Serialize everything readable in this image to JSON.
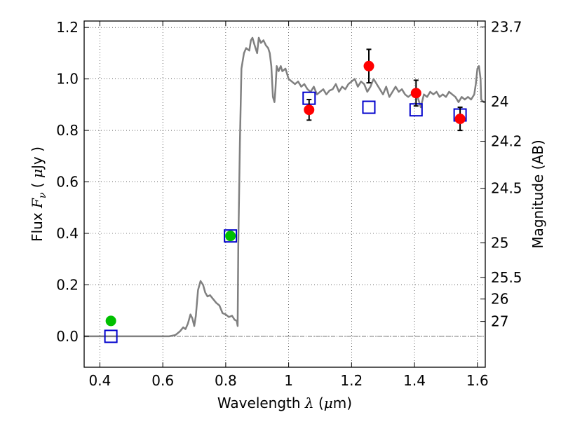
{
  "chart_data": {
    "type": "scatter",
    "title": "",
    "xlabel": "Wavelength  λ (μm)",
    "ylabel": "Flux  F_ν  ( μJy )",
    "ylabel_parts": {
      "pre": "Flux  ",
      "var": "F",
      "sub": "ν",
      "mid": "  ( ",
      "mu": "μ",
      "post": "Jy )"
    },
    "xlabel_parts": {
      "pre": "Wavelength  ",
      "lam": "λ",
      "mid": " (",
      "mu": "μ",
      "post": "m)"
    },
    "y2label": "Magnitude (AB)",
    "xlim": [
      0.35,
      1.625
    ],
    "ylim": [
      -0.12,
      1.225
    ],
    "grid": true,
    "x_ticks": [
      {
        "value": 0.4,
        "label": "0.4"
      },
      {
        "value": 0.6,
        "label": "0.6"
      },
      {
        "value": 0.8,
        "label": "0.8"
      },
      {
        "value": 1.0,
        "label": "1"
      },
      {
        "value": 1.2,
        "label": "1.2"
      },
      {
        "value": 1.4,
        "label": "1.4"
      },
      {
        "value": 1.6,
        "label": "1.6"
      }
    ],
    "y_ticks": [
      {
        "value": 0.0,
        "label": "0.0"
      },
      {
        "value": 0.2,
        "label": "0.2"
      },
      {
        "value": 0.4,
        "label": "0.4"
      },
      {
        "value": 0.6,
        "label": "0.6"
      },
      {
        "value": 0.8,
        "label": "0.8"
      },
      {
        "value": 1.0,
        "label": "1.0"
      },
      {
        "value": 1.2,
        "label": "1.2"
      }
    ],
    "y2_ticks": [
      {
        "flux": 1.202,
        "label": "23.7"
      },
      {
        "flux": 0.912,
        "label": "24"
      },
      {
        "flux": 0.758,
        "label": "24.2"
      },
      {
        "flux": 0.575,
        "label": "24.5"
      },
      {
        "flux": 0.363,
        "label": "25"
      },
      {
        "flux": 0.229,
        "label": "25.5"
      },
      {
        "flux": 0.145,
        "label": "26"
      },
      {
        "flux": 0.058,
        "label": "27"
      }
    ],
    "series": [
      {
        "kind": "line",
        "color": "#808080",
        "points": [
          [
            0.35,
            0.0
          ],
          [
            0.62,
            0.0
          ],
          [
            0.64,
            0.005
          ],
          [
            0.655,
            0.02
          ],
          [
            0.665,
            0.035
          ],
          [
            0.672,
            0.028
          ],
          [
            0.68,
            0.05
          ],
          [
            0.688,
            0.085
          ],
          [
            0.694,
            0.07
          ],
          [
            0.7,
            0.04
          ],
          [
            0.705,
            0.08
          ],
          [
            0.712,
            0.18
          ],
          [
            0.72,
            0.215
          ],
          [
            0.728,
            0.2
          ],
          [
            0.735,
            0.17
          ],
          [
            0.742,
            0.155
          ],
          [
            0.75,
            0.16
          ],
          [
            0.76,
            0.145
          ],
          [
            0.77,
            0.13
          ],
          [
            0.78,
            0.12
          ],
          [
            0.79,
            0.09
          ],
          [
            0.8,
            0.085
          ],
          [
            0.81,
            0.075
          ],
          [
            0.82,
            0.08
          ],
          [
            0.828,
            0.065
          ],
          [
            0.835,
            0.06
          ],
          [
            0.838,
            0.04
          ],
          [
            0.84,
            0.35
          ],
          [
            0.845,
            0.75
          ],
          [
            0.85,
            1.04
          ],
          [
            0.858,
            1.1
          ],
          [
            0.865,
            1.12
          ],
          [
            0.875,
            1.11
          ],
          [
            0.88,
            1.15
          ],
          [
            0.885,
            1.16
          ],
          [
            0.892,
            1.13
          ],
          [
            0.9,
            1.1
          ],
          [
            0.905,
            1.16
          ],
          [
            0.912,
            1.14
          ],
          [
            0.92,
            1.15
          ],
          [
            0.928,
            1.13
          ],
          [
            0.935,
            1.12
          ],
          [
            0.94,
            1.1
          ],
          [
            0.945,
            1.05
          ],
          [
            0.95,
            0.93
          ],
          [
            0.955,
            0.91
          ],
          [
            0.958,
            0.96
          ],
          [
            0.962,
            1.05
          ],
          [
            0.968,
            1.03
          ],
          [
            0.975,
            1.05
          ],
          [
            0.98,
            1.03
          ],
          [
            0.99,
            1.04
          ],
          [
            1.0,
            1.0
          ],
          [
            1.01,
            0.99
          ],
          [
            1.02,
            0.98
          ],
          [
            1.03,
            0.99
          ],
          [
            1.04,
            0.97
          ],
          [
            1.05,
            0.98
          ],
          [
            1.06,
            0.96
          ],
          [
            1.07,
            0.95
          ],
          [
            1.08,
            0.97
          ],
          [
            1.09,
            0.94
          ],
          [
            1.1,
            0.95
          ],
          [
            1.11,
            0.96
          ],
          [
            1.12,
            0.94
          ],
          [
            1.13,
            0.955
          ],
          [
            1.14,
            0.96
          ],
          [
            1.15,
            0.98
          ],
          [
            1.16,
            0.95
          ],
          [
            1.17,
            0.97
          ],
          [
            1.18,
            0.96
          ],
          [
            1.19,
            0.98
          ],
          [
            1.2,
            0.99
          ],
          [
            1.21,
            1.0
          ],
          [
            1.22,
            0.97
          ],
          [
            1.23,
            0.99
          ],
          [
            1.24,
            0.98
          ],
          [
            1.25,
            0.95
          ],
          [
            1.26,
            0.97
          ],
          [
            1.27,
            1.0
          ],
          [
            1.28,
            0.98
          ],
          [
            1.29,
            0.96
          ],
          [
            1.3,
            0.94
          ],
          [
            1.31,
            0.97
          ],
          [
            1.32,
            0.93
          ],
          [
            1.33,
            0.95
          ],
          [
            1.34,
            0.97
          ],
          [
            1.35,
            0.95
          ],
          [
            1.36,
            0.96
          ],
          [
            1.37,
            0.94
          ],
          [
            1.38,
            0.93
          ],
          [
            1.39,
            0.94
          ],
          [
            1.4,
            0.95
          ],
          [
            1.41,
            0.93
          ],
          [
            1.42,
            0.89
          ],
          [
            1.43,
            0.94
          ],
          [
            1.44,
            0.93
          ],
          [
            1.45,
            0.95
          ],
          [
            1.46,
            0.94
          ],
          [
            1.47,
            0.95
          ],
          [
            1.48,
            0.93
          ],
          [
            1.49,
            0.94
          ],
          [
            1.5,
            0.93
          ],
          [
            1.51,
            0.95
          ],
          [
            1.52,
            0.94
          ],
          [
            1.53,
            0.93
          ],
          [
            1.54,
            0.91
          ],
          [
            1.55,
            0.93
          ],
          [
            1.56,
            0.92
          ],
          [
            1.57,
            0.93
          ],
          [
            1.58,
            0.92
          ],
          [
            1.59,
            0.94
          ],
          [
            1.595,
            0.98
          ],
          [
            1.6,
            1.04
          ],
          [
            1.605,
            1.05
          ],
          [
            1.61,
            1.0
          ],
          [
            1.612,
            0.92
          ],
          [
            1.62,
            0.91
          ],
          [
            1.625,
            0.91
          ]
        ]
      },
      {
        "kind": "filled-circles",
        "color": "#00c000",
        "points": [
          {
            "x": 0.435,
            "y": 0.06,
            "err": 0.01
          },
          {
            "x": 0.815,
            "y": 0.39,
            "err": 0.015
          }
        ]
      },
      {
        "kind": "filled-circles",
        "color": "#ff0000",
        "points": [
          {
            "x": 1.065,
            "y": 0.88,
            "err": 0.04
          },
          {
            "x": 1.255,
            "y": 1.05,
            "err": 0.065
          },
          {
            "x": 1.405,
            "y": 0.945,
            "err": 0.05
          },
          {
            "x": 1.545,
            "y": 0.845,
            "err": 0.045
          }
        ]
      },
      {
        "kind": "open-squares",
        "color": "#0000cc",
        "points": [
          {
            "x": 0.435,
            "y": 0.0
          },
          {
            "x": 0.815,
            "y": 0.39
          },
          {
            "x": 1.065,
            "y": 0.925
          },
          {
            "x": 1.255,
            "y": 0.89
          },
          {
            "x": 1.405,
            "y": 0.88
          },
          {
            "x": 1.545,
            "y": 0.86
          }
        ]
      }
    ]
  }
}
